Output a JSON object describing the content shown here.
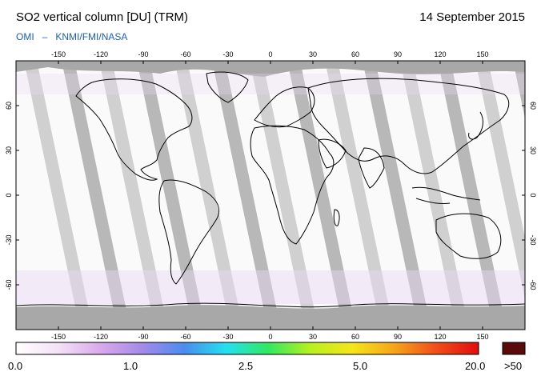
{
  "header": {
    "title": "SO2 vertical column [DU] (TRM)",
    "date": "14 September 2015",
    "source_left": "OMI",
    "source_sep": "–",
    "source_right": "KNMI/FMI/NASA"
  },
  "map": {
    "lon_ticks": [
      "-150",
      "-120",
      "-90",
      "-60",
      "-30",
      "0",
      "30",
      "60",
      "90",
      "120",
      "150"
    ],
    "lat_ticks": [
      "60",
      "30",
      "0",
      "-30",
      "-60"
    ],
    "lon_range": [
      -180,
      180
    ],
    "lat_range": [
      -90,
      90
    ],
    "colors": {
      "background": "#ffffff",
      "no_data": "#a8a8a8",
      "swath_gap": "#d0d0d0",
      "coast": "#000000"
    }
  },
  "colorbar": {
    "labels": [
      "0.0",
      "1.0",
      "2.5",
      "5.0",
      "20.0",
      ">50"
    ],
    "stops": [
      "#ffffff",
      "#f4e2f6",
      "#d9a9ec",
      "#a58ae8",
      "#4a8cf0",
      "#24e0f0",
      "#31e860",
      "#b8f020",
      "#f5e51a",
      "#f6a41a",
      "#f04d1a",
      "#e00d0d"
    ],
    "overflow_color": "#5a0a0a"
  }
}
